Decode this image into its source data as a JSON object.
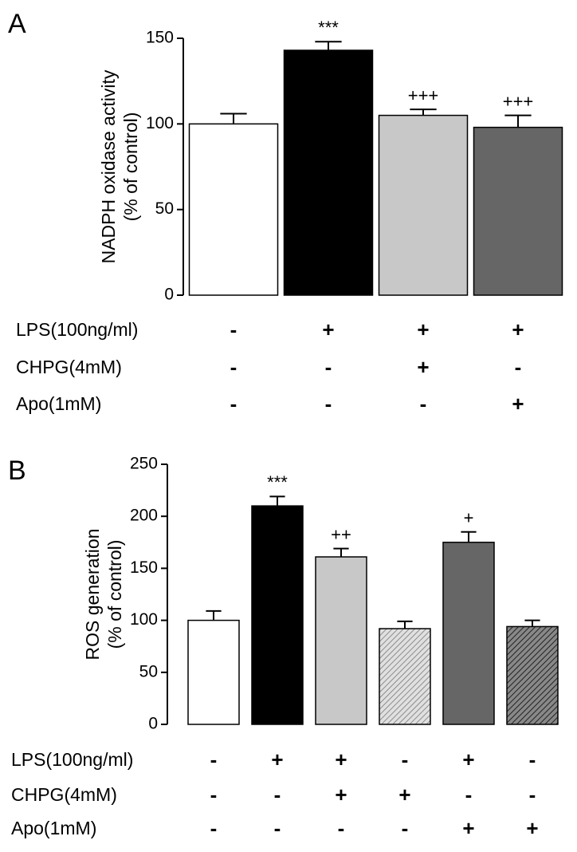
{
  "chart_data": [
    {
      "type": "bar",
      "panel": "A",
      "ylabel": [
        "NADPH oxidase activity",
        "(% of control)"
      ],
      "ylim": [
        0,
        150
      ],
      "yticks": [
        0,
        50,
        100,
        150
      ],
      "values": [
        100,
        143,
        105,
        98
      ],
      "errors": [
        6,
        5,
        3.5,
        7
      ],
      "colors": [
        "#ffffff",
        "#000000",
        "#c8c8c8",
        "#666666"
      ],
      "hatch": [
        false,
        false,
        false,
        false
      ],
      "annotations": [
        null,
        "***",
        "+++",
        "+++"
      ],
      "rows": [
        {
          "label": "LPS(100ng/ml)",
          "signs": [
            "-",
            "+",
            "+",
            "+"
          ]
        },
        {
          "label": "CHPG(4mM)",
          "signs": [
            "-",
            "-",
            "+",
            "-"
          ]
        },
        {
          "label": "Apo(1mM)",
          "signs": [
            "-",
            "-",
            "-",
            "+"
          ]
        }
      ]
    },
    {
      "type": "bar",
      "panel": "B",
      "ylabel": [
        "ROS generation",
        "(% of control)"
      ],
      "ylim": [
        0,
        250
      ],
      "yticks": [
        0,
        50,
        100,
        150,
        200,
        250
      ],
      "values": [
        100,
        210,
        161,
        92,
        175,
        94
      ],
      "errors": [
        9,
        9,
        8,
        7,
        10,
        6
      ],
      "colors": [
        "#ffffff",
        "#000000",
        "#c8c8c8",
        "#d8d8d8",
        "#666666",
        "#555555"
      ],
      "hatch": [
        false,
        false,
        false,
        true,
        false,
        true
      ],
      "annotations": [
        null,
        "***",
        "++",
        null,
        "+",
        null
      ],
      "rows": [
        {
          "label": "LPS(100ng/ml)",
          "signs": [
            "-",
            "+",
            "+",
            "-",
            "+",
            "-"
          ]
        },
        {
          "label": "CHPG(4mM)",
          "signs": [
            "-",
            "-",
            "+",
            "+",
            "-",
            "-"
          ]
        },
        {
          "label": "Apo(1mM)",
          "signs": [
            "-",
            "-",
            "-",
            "-",
            "+",
            "+"
          ]
        }
      ]
    }
  ]
}
